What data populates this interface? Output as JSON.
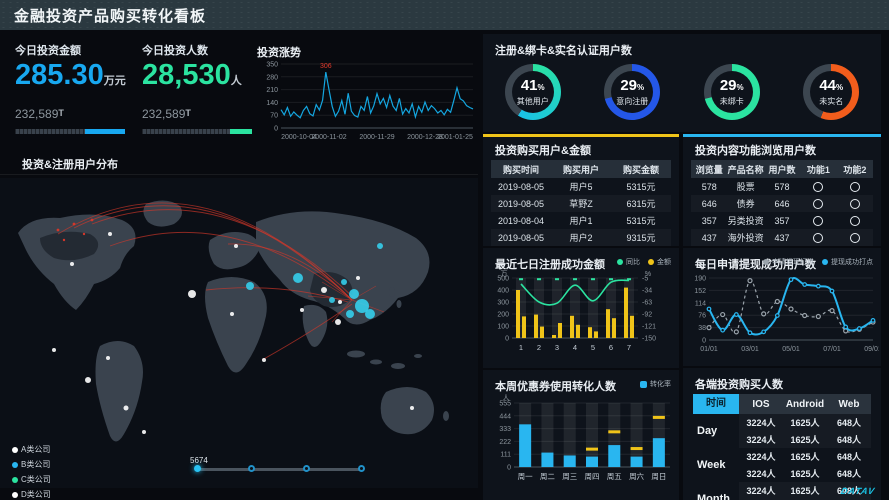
{
  "header": {
    "title": "金融投资产品购买转化看板"
  },
  "watermark": "DATAV",
  "stats": {
    "amount": {
      "title": "今日投资金额",
      "value": "285.30",
      "unit": "万元",
      "sub": "232,589",
      "sub_mark": "T",
      "accent": "#18a8f0",
      "progress_pct": 36
    },
    "people": {
      "title": "今日投资人数",
      "value": "28,530",
      "unit": "人",
      "sub": "232,589",
      "sub_mark": "T",
      "accent": "#2be3a0",
      "progress_pct": 20
    }
  },
  "map": {
    "title": "投资&注册用户分布",
    "legend": [
      {
        "label": "A类公司",
        "color": "#ffffff"
      },
      {
        "label": "B类公司",
        "color": "#29b6f0"
      },
      {
        "label": "C类公司",
        "color": "#2be3a0"
      },
      {
        "label": "D类公司",
        "color": "#ffffff"
      }
    ],
    "slider": {
      "value": "5674",
      "stops": 4
    }
  },
  "donuts": {
    "title": "注册&绑卡&实名认证用户数",
    "items": [
      {
        "value": "41",
        "pct_mark": "%",
        "label": "其他用户",
        "color1": "#2be3a0",
        "color2": "#19c2e8"
      },
      {
        "value": "29",
        "pct_mark": "%",
        "label": "意向注册",
        "color1": "#2457e8",
        "color2": "#2457e8"
      },
      {
        "value": "29",
        "pct_mark": "%",
        "label": "未绑卡",
        "color1": "#2be3a0",
        "color2": "#2be3a0"
      },
      {
        "value": "44",
        "pct_mark": "%",
        "label": "未实名",
        "color1": "#f25d1c",
        "color2": "#f25d1c"
      }
    ],
    "track_color": "#3c4650"
  },
  "purchase_table": {
    "title": "投资购买用户&金额",
    "accent": "#f0c419",
    "headers": [
      "购买时间",
      "购买用户",
      "购买金额"
    ],
    "rows": [
      [
        "2019-08-05",
        "用户5",
        "5315元"
      ],
      [
        "2019-08-05",
        "草野Z",
        "6315元"
      ],
      [
        "2019-08-04",
        "用户1",
        "5315元"
      ],
      [
        "2019-08-05",
        "用户2",
        "9315元"
      ],
      [
        "2019-08-06",
        "用户3",
        "5315元"
      ]
    ]
  },
  "browse_table": {
    "title": "投资内容功能浏览用户数",
    "accent": "#29b6f0",
    "headers": [
      "浏览量",
      "产品名称",
      "用户数",
      "功能1",
      "功能2"
    ],
    "icon_cols": [
      3,
      4
    ],
    "rows": [
      [
        "578",
        "股票",
        "578",
        "○",
        "○"
      ],
      [
        "646",
        "债券",
        "646",
        "○",
        "○"
      ],
      [
        "357",
        "另类投资",
        "357",
        "○",
        "○"
      ],
      [
        "437",
        "海外投资",
        "437",
        "○",
        "○"
      ],
      [
        "6125",
        "现金类",
        "6125",
        "○",
        "○"
      ]
    ]
  },
  "platform_table": {
    "title": "各端投资购买人数",
    "time_header": "时间",
    "headers": [
      "IOS",
      "Android",
      "Web"
    ],
    "groups": [
      {
        "label": "Day",
        "rows": [
          [
            "3224人",
            "1625人",
            "648人"
          ],
          [
            "3224人",
            "1625人",
            "648人"
          ]
        ]
      },
      {
        "label": "Week",
        "rows": [
          [
            "3224人",
            "1625人",
            "648人"
          ],
          [
            "3224人",
            "1625人",
            "648人"
          ]
        ]
      },
      {
        "label": "Month",
        "rows": [
          [
            "3224人",
            "1625人",
            "648人"
          ],
          [
            "3224人",
            "1625人",
            "648人"
          ]
        ]
      }
    ]
  },
  "chart_data": [
    {
      "id": "trend",
      "type": "line",
      "title": "投资涨势",
      "ylim": [
        0,
        350
      ],
      "yticks": [
        0,
        70,
        140,
        210,
        280,
        350
      ],
      "xticks": [
        "2000-10-04",
        "2000-11-02",
        "2000-11-29",
        "2000-12-28",
        "2001-01-25"
      ],
      "annotation": {
        "text": "306",
        "color": "#e0392b"
      },
      "series": [
        {
          "name": "投资涨势",
          "color": "#14a6e0",
          "values": [
            100,
            72,
            112,
            64,
            88,
            70,
            56,
            96,
            118,
            78,
            66,
            128,
            98,
            152,
            306,
            210,
            118,
            64,
            92,
            150,
            75,
            190,
            92,
            68,
            60,
            118,
            96,
            172,
            82,
            122,
            188,
            132,
            162,
            112,
            178,
            120,
            96,
            162,
            76,
            106,
            82,
            132,
            60,
            118,
            86,
            142,
            96,
            122,
            106,
            82,
            96,
            72,
            102,
            86,
            150,
            220,
            160,
            148,
            122,
            112,
            104
          ]
        }
      ]
    },
    {
      "id": "weekly",
      "type": "bar+line",
      "title": "最近七日注册成功金额",
      "legend": [
        {
          "name": "同比",
          "color": "#2be3a0"
        },
        {
          "name": "金额",
          "color": "#f0c419"
        }
      ],
      "categories": [
        "1",
        "2",
        "3",
        "4",
        "5",
        "6",
        "7"
      ],
      "left_axis": {
        "label": "万",
        "ticks": [
          0,
          100,
          200,
          300,
          400,
          500
        ],
        "lim": [
          0,
          500
        ]
      },
      "right_axis": {
        "label": "%",
        "ticks": [
          -150,
          -121,
          -92,
          -63,
          -34,
          -5
        ]
      },
      "bar_color": "#f0c419",
      "bars_a": [
        400,
        195,
        25,
        185,
        90,
        240,
        420
      ],
      "bars_b": [
        180,
        95,
        125,
        110,
        55,
        165,
        185
      ],
      "line": {
        "name": "同比",
        "color": "#2be3a0",
        "values": [
          450,
          300,
          290,
          440,
          310,
          465,
          480
        ]
      },
      "top_markers": 490
    },
    {
      "id": "coupon",
      "type": "bar",
      "title": "本周优惠券使用转化人数",
      "legend": [
        {
          "name": "转化率",
          "color": "#29b6f0"
        }
      ],
      "categories": [
        "周一",
        "周二",
        "周三",
        "周四",
        "周五",
        "周六",
        "周日"
      ],
      "ylabel": "人",
      "ylim": [
        0,
        555
      ],
      "yticks": [
        0,
        111,
        222,
        333,
        444,
        555
      ],
      "bar_color": "#29b6f0",
      "marker_color": "#f0c419",
      "values": [
        370,
        125,
        100,
        90,
        190,
        90,
        250
      ],
      "markers": [
        null,
        null,
        null,
        155,
        305,
        160,
        430
      ]
    },
    {
      "id": "withdraw",
      "type": "line",
      "title": "每日申请提现成功用户数",
      "legend": [
        {
          "name": "申请提现打点",
          "color": "#9aa3ab"
        },
        {
          "name": "提现成功打点",
          "color": "#29b6f0"
        }
      ],
      "ylim": [
        0,
        190
      ],
      "yticks": [
        0,
        38,
        76,
        114,
        152,
        190
      ],
      "xticks": [
        "01/01",
        "03/01",
        "05/01",
        "07/01",
        "09/01"
      ],
      "series": [
        {
          "name": "申请提现打点",
          "color": "#9aa3ab",
          "dashed": true,
          "values": [
            38,
            78,
            25,
            182,
            80,
            118,
            95,
            75,
            72,
            90,
            28,
            33,
            55
          ]
        },
        {
          "name": "提现成功打点",
          "color": "#29b6f0",
          "dashed": false,
          "values": [
            95,
            30,
            78,
            22,
            25,
            75,
            185,
            170,
            165,
            150,
            40,
            35,
            60
          ]
        }
      ]
    }
  ]
}
